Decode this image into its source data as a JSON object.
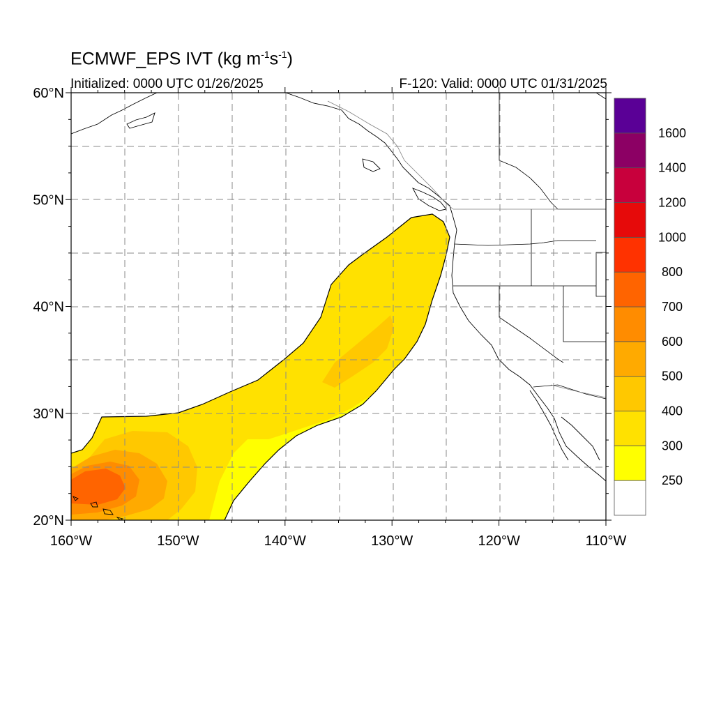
{
  "title": {
    "main": "ECMWF_EPS IVT (kg m",
    "exp1": "-1",
    "mid": "s",
    "exp2": "-1",
    "end": ")"
  },
  "subtitle_left": "Initialized: 0000 UTC 01/26/2025",
  "subtitle_right": "F-120: Valid: 0000 UTC 01/31/2025",
  "map": {
    "lon_range": [
      -160,
      -110
    ],
    "lat_range": [
      20,
      60
    ],
    "lon_ticks": [
      {
        "value": -160,
        "label": "160°W"
      },
      {
        "value": -150,
        "label": "150°W"
      },
      {
        "value": -140,
        "label": "140°W"
      },
      {
        "value": -130,
        "label": "130°W"
      },
      {
        "value": -120,
        "label": "120°W"
      },
      {
        "value": -110,
        "label": "110°W"
      }
    ],
    "lat_ticks": [
      {
        "value": 60,
        "label": "60°N"
      },
      {
        "value": 50,
        "label": "50°N"
      },
      {
        "value": 40,
        "label": "40°N"
      },
      {
        "value": 30,
        "label": "30°N"
      },
      {
        "value": 20,
        "label": "20°N"
      }
    ],
    "grid": "dashed-gray"
  },
  "colorbar": {
    "levels": [
      {
        "label": "",
        "color": "#ffffff"
      },
      {
        "label": "250",
        "color": "#ffff00"
      },
      {
        "label": "300",
        "color": "#ffe100"
      },
      {
        "label": "400",
        "color": "#ffc800"
      },
      {
        "label": "500",
        "color": "#ffaa00"
      },
      {
        "label": "600",
        "color": "#ff8c00"
      },
      {
        "label": "700",
        "color": "#ff6400"
      },
      {
        "label": "800",
        "color": "#ff3200"
      },
      {
        "label": "1000",
        "color": "#e60a0a"
      },
      {
        "label": "1200",
        "color": "#c8003c"
      },
      {
        "label": "1400",
        "color": "#8c0064"
      },
      {
        "label": "1600",
        "color": "#5a0096"
      }
    ]
  },
  "ivt_plume": {
    "region_threshold": "250",
    "core_ranges": [
      "300-400",
      "400-500",
      "500-600"
    ]
  }
}
